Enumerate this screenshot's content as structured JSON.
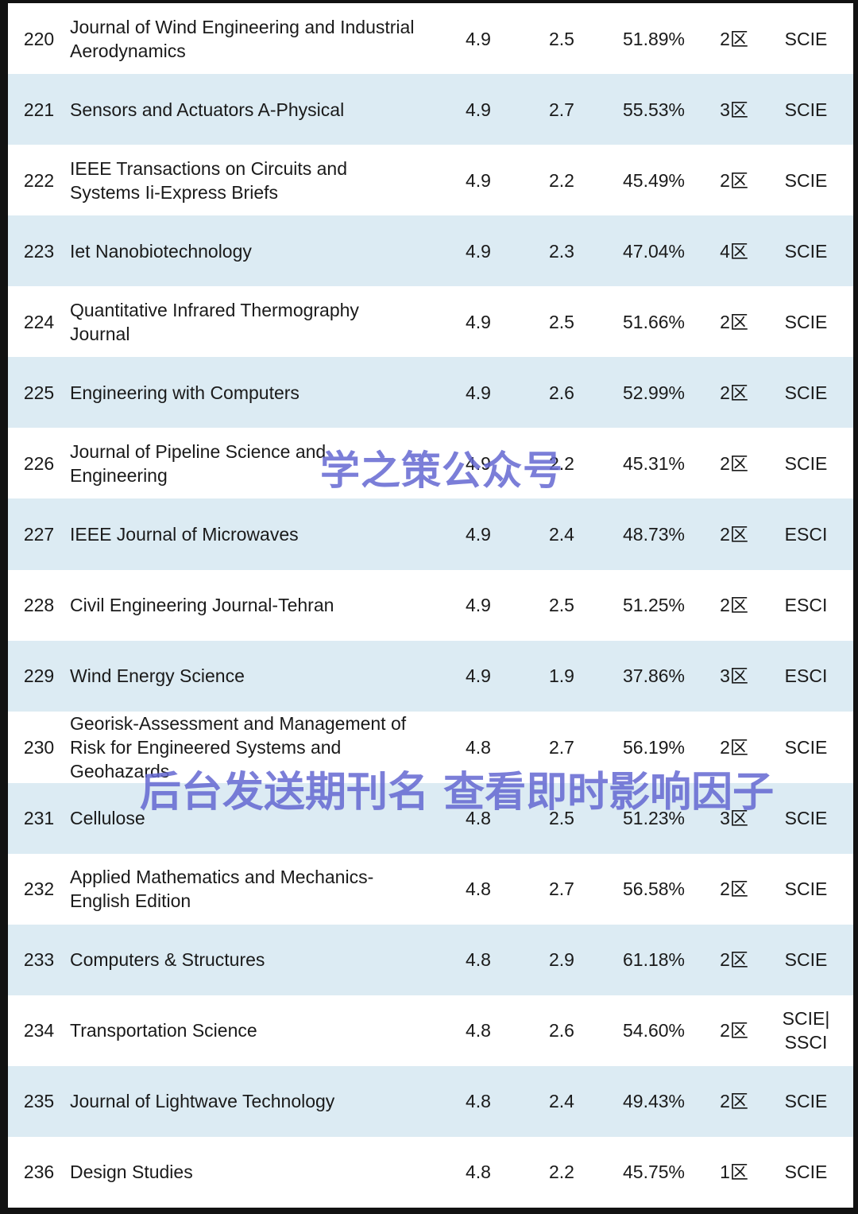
{
  "colors": {
    "stripe": "#dcebf3",
    "frame": "#121212",
    "watermark": "#6468d2"
  },
  "watermarks": {
    "wm1": "学之策公众号",
    "wm2": "后台发送期刊名 查看即时影响因子"
  },
  "table": {
    "rows": [
      {
        "rank": "220",
        "name": "Journal of Wind Engineering and Industrial Aerodynamics",
        "v1": "4.9",
        "v2": "2.5",
        "pct": "51.89%",
        "zone": "2区",
        "idx": "SCIE"
      },
      {
        "rank": "221",
        "name": "Sensors and Actuators A-Physical",
        "v1": "4.9",
        "v2": "2.7",
        "pct": "55.53%",
        "zone": "3区",
        "idx": "SCIE"
      },
      {
        "rank": "222",
        "name": "IEEE Transactions on Circuits and Systems Ii-Express Briefs",
        "v1": "4.9",
        "v2": "2.2",
        "pct": "45.49%",
        "zone": "2区",
        "idx": "SCIE"
      },
      {
        "rank": "223",
        "name": "Iet Nanobiotechnology",
        "v1": "4.9",
        "v2": "2.3",
        "pct": "47.04%",
        "zone": "4区",
        "idx": "SCIE"
      },
      {
        "rank": "224",
        "name": "Quantitative Infrared Thermography Journal",
        "v1": "4.9",
        "v2": "2.5",
        "pct": "51.66%",
        "zone": "2区",
        "idx": "SCIE"
      },
      {
        "rank": "225",
        "name": "Engineering with Computers",
        "v1": "4.9",
        "v2": "2.6",
        "pct": "52.99%",
        "zone": "2区",
        "idx": "SCIE"
      },
      {
        "rank": "226",
        "name": "Journal of Pipeline Science and Engineering",
        "v1": "4.9",
        "v2": "2.2",
        "pct": "45.31%",
        "zone": "2区",
        "idx": "SCIE"
      },
      {
        "rank": "227",
        "name": "IEEE Journal of Microwaves",
        "v1": "4.9",
        "v2": "2.4",
        "pct": "48.73%",
        "zone": "2区",
        "idx": "ESCI"
      },
      {
        "rank": "228",
        "name": "Civil Engineering Journal-Tehran",
        "v1": "4.9",
        "v2": "2.5",
        "pct": "51.25%",
        "zone": "2区",
        "idx": "ESCI"
      },
      {
        "rank": "229",
        "name": "Wind Energy Science",
        "v1": "4.9",
        "v2": "1.9",
        "pct": "37.86%",
        "zone": "3区",
        "idx": "ESCI"
      },
      {
        "rank": "230",
        "name": "Georisk-Assessment and Management of Risk for Engineered Systems and Geohazards",
        "v1": "4.8",
        "v2": "2.7",
        "pct": "56.19%",
        "zone": "2区",
        "idx": "SCIE"
      },
      {
        "rank": "231",
        "name": "Cellulose",
        "v1": "4.8",
        "v2": "2.5",
        "pct": "51.23%",
        "zone": "3区",
        "idx": "SCIE"
      },
      {
        "rank": "232",
        "name": "Applied Mathematics and Mechanics-English Edition",
        "v1": "4.8",
        "v2": "2.7",
        "pct": "56.58%",
        "zone": "2区",
        "idx": "SCIE"
      },
      {
        "rank": "233",
        "name": "Computers & Structures",
        "v1": "4.8",
        "v2": "2.9",
        "pct": "61.18%",
        "zone": "2区",
        "idx": "SCIE"
      },
      {
        "rank": "234",
        "name": "Transportation Science",
        "v1": "4.8",
        "v2": "2.6",
        "pct": "54.60%",
        "zone": "2区",
        "idx": "SCIE| SSCI"
      },
      {
        "rank": "235",
        "name": "Journal of Lightwave Technology",
        "v1": "4.8",
        "v2": "2.4",
        "pct": "49.43%",
        "zone": "2区",
        "idx": "SCIE"
      },
      {
        "rank": "236",
        "name": "Design Studies",
        "v1": "4.8",
        "v2": "2.2",
        "pct": "45.75%",
        "zone": "1区",
        "idx": "SCIE"
      }
    ]
  }
}
